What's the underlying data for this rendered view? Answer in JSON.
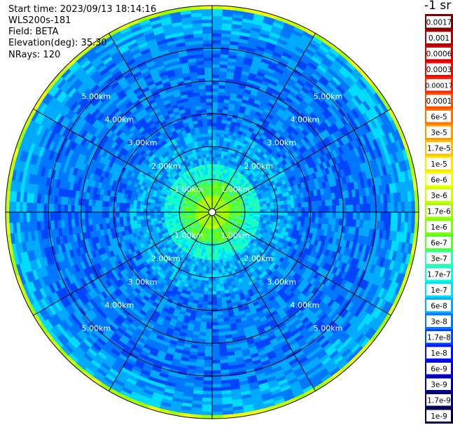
{
  "info": {
    "start_time": "Start time: 2023/09/13 18:14:16",
    "instrument": "WLS200s-181",
    "field": "Field: BETA",
    "elevation": "Elevation(deg): 35.30",
    "nrays": "NRays: 120"
  },
  "colorbar": {
    "title": "-1 sr",
    "labels": [
      "0.0017",
      "0.001",
      "0.0006",
      "0.0003",
      "0.00017",
      "0.0001",
      "6e-5",
      "3e-5",
      "1.7e-5",
      "1e-5",
      "6e-6",
      "3e-6",
      "1.7e-6",
      "1e-6",
      "6e-7",
      "3e-7",
      "1.7e-7",
      "1e-7",
      "6e-8",
      "3e-8",
      "1.7e-8",
      "1e-8",
      "6e-9",
      "3e-9",
      "1.7e-9",
      "1e-9"
    ],
    "colors": [
      "#7a0000",
      "#a80000",
      "#d40000",
      "#ff0000",
      "#ff2400",
      "#ff4b00",
      "#ff7200",
      "#ff9900",
      "#ffbf00",
      "#ffe600",
      "#f2ff00",
      "#cbff00",
      "#a3ff00",
      "#7cff00",
      "#55ff29",
      "#2effa8",
      "#0affd9",
      "#00ddff",
      "#00aaff",
      "#0077ff",
      "#0044ff",
      "#0011ff",
      "#0000d0",
      "#0000a0",
      "#00006e",
      "#000040"
    ]
  },
  "chart_data": {
    "type": "heatmap",
    "projection": "polar (PPI scan)",
    "field": "BETA",
    "units": "-1 sr",
    "elevation_deg": 35.3,
    "n_rays": 120,
    "range_rings": [
      {
        "km": 1.0,
        "label": "1.00km"
      },
      {
        "km": 2.0,
        "label": "2.00km"
      },
      {
        "km": 3.0,
        "label": "3.00km"
      },
      {
        "km": 4.0,
        "label": "4.00km"
      },
      {
        "km": 5.0,
        "label": "5.00km"
      }
    ],
    "max_range_km": 6.3,
    "spoke_step_deg": 30,
    "radial_profile": [
      {
        "range_km": 0.1,
        "beta_level": "1.7e-6"
      },
      {
        "range_km": 0.5,
        "beta_level": "6e-7"
      },
      {
        "range_km": 0.9,
        "beta_level": "1.7e-7"
      },
      {
        "range_km": 1.5,
        "beta_level": "6e-8"
      },
      {
        "range_km": 2.5,
        "beta_level": "3e-8"
      },
      {
        "range_km": 3.5,
        "beta_level": "3e-8"
      },
      {
        "range_km": 4.5,
        "beta_level": "3e-8"
      },
      {
        "range_km": 5.5,
        "beta_level": "6e-8"
      },
      {
        "range_km": 6.2,
        "beta_level": "3e-6"
      }
    ],
    "grid": true
  }
}
